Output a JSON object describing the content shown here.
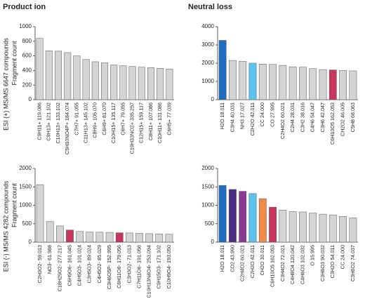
{
  "chart_data": [
    {
      "type": "bar",
      "title": "Product ion",
      "row_label": "ESI (+) MS/MS  6647 compounds",
      "ylabel": "Fragment count",
      "categories": [
        "C9H11+ 119.086",
        "C9H13+ 121.102",
        "C10H13+ 133.102",
        "C5H10NO4P+ 184.074",
        "C7H7+ 91.055",
        "C11H13+ 145.102",
        "C8H9+ 105.070",
        "C6H9+ 81.070",
        "C10H15+ 135.117",
        "C6H7+ 79.055",
        "C19H33NO2+ 335.257",
        "C12H15+ 159.117",
        "C8H11+ 107.086",
        "C10H11+ 131.086",
        "C6H5+ 77.039"
      ],
      "values": [
        840,
        670,
        665,
        645,
        600,
        550,
        520,
        505,
        475,
        465,
        455,
        445,
        440,
        430,
        420
      ],
      "colors": [
        "#d4d4d4",
        "#d4d4d4",
        "#d4d4d4",
        "#d4d4d4",
        "#d4d4d4",
        "#d4d4d4",
        "#d4d4d4",
        "#d4d4d4",
        "#d4d4d4",
        "#d4d4d4",
        "#d4d4d4",
        "#d4d4d4",
        "#d4d4d4",
        "#d4d4d4",
        "#d4d4d4"
      ],
      "ylim": [
        0,
        1000
      ],
      "yticks": [
        0,
        200,
        400,
        600,
        800,
        1000
      ]
    },
    {
      "type": "bar",
      "title": "Neutral loss",
      "categories": [
        "H2O 18.011",
        "C3H4 40.031",
        "NH3 17.027",
        "C2H2O 42.011",
        "CC 24.000",
        "CO 27.995",
        "C2H4O2 60.021",
        "C2H4 28.031",
        "C3H2 38.016",
        "C4H6 54.047",
        "C3H6 42.047",
        "C6H10O5 162.053",
        "CH2O2 46.005",
        "C5H8 68.063"
      ],
      "values": [
        3250,
        2150,
        2100,
        2000,
        1950,
        1930,
        1880,
        1800,
        1780,
        1700,
        1650,
        1630,
        1600,
        1580
      ],
      "colors": [
        "#1f6cc0",
        "#d4d4d4",
        "#d4d4d4",
        "#5cc3ee",
        "#d4d4d4",
        "#d4d4d4",
        "#d4d4d4",
        "#d4d4d4",
        "#d4d4d4",
        "#d4d4d4",
        "#d4d4d4",
        "#c7365c",
        "#d4d4d4",
        "#d4d4d4"
      ],
      "ylim": [
        0,
        4000
      ],
      "yticks": [
        0,
        1000,
        2000,
        3000,
        4000
      ]
    },
    {
      "type": "bar",
      "row_label": "ESI (-) MS/MS 4282 compounds",
      "ylabel": "Fragment count",
      "categories": [
        "C2H3O2- 59.013",
        "NO3- 61.988",
        "C18H29O2- 277.217",
        "C6H9O6- 161.045",
        "C4H5O3- 101.024",
        "C3H5O3- 89.024",
        "C4H5O2- 85.029",
        "C3H6O5P- 152.995",
        "C6H11O6- 179.056",
        "C3H3O2- 71.013",
        "C7H11O6- 191.056",
        "C10H13N4O4- 253.094",
        "C9H15O3- 171.102",
        "C10H9O4- 193.050"
      ],
      "values": [
        1560,
        560,
        440,
        330,
        290,
        275,
        270,
        265,
        255,
        250,
        240,
        230,
        225,
        215
      ],
      "colors": [
        "#d4d4d4",
        "#d4d4d4",
        "#d4d4d4",
        "#c7365c",
        "#d4d4d4",
        "#d4d4d4",
        "#d4d4d4",
        "#d4d4d4",
        "#c7365c",
        "#d4d4d4",
        "#d4d4d4",
        "#d4d4d4",
        "#d4d4d4",
        "#d4d4d4"
      ],
      "ylim": [
        0,
        2000
      ],
      "yticks": [
        0,
        500,
        1000,
        1500,
        2000
      ]
    },
    {
      "type": "bar",
      "categories": [
        "H2O 18.011",
        "CO2 43.990",
        "C2H4O2 60.021",
        "C2H2O 42.011",
        "CH2O 30.011",
        "C6H10O5 162.053",
        "C3H4O2 72.021",
        "C4H8O4 120.042",
        "C4H6O3 102.032",
        "O 15.995",
        "C3H6O3 90.032",
        "C3H2O 54.011",
        "CC 24.000",
        "C3H6O2 74.037"
      ],
      "values": [
        1540,
        1430,
        1380,
        1320,
        1180,
        950,
        870,
        830,
        820,
        790,
        760,
        740,
        700,
        660
      ],
      "colors": [
        "#1f6cc0",
        "#4a2c82",
        "#8a3a93",
        "#5cc3ee",
        "#f0894a",
        "#c7365c",
        "#d4d4d4",
        "#d4d4d4",
        "#d4d4d4",
        "#d4d4d4",
        "#d4d4d4",
        "#d4d4d4",
        "#d4d4d4",
        "#d4d4d4"
      ],
      "ylim": [
        0,
        2000
      ],
      "yticks": [
        0,
        500,
        1000,
        1500,
        2000
      ]
    }
  ]
}
